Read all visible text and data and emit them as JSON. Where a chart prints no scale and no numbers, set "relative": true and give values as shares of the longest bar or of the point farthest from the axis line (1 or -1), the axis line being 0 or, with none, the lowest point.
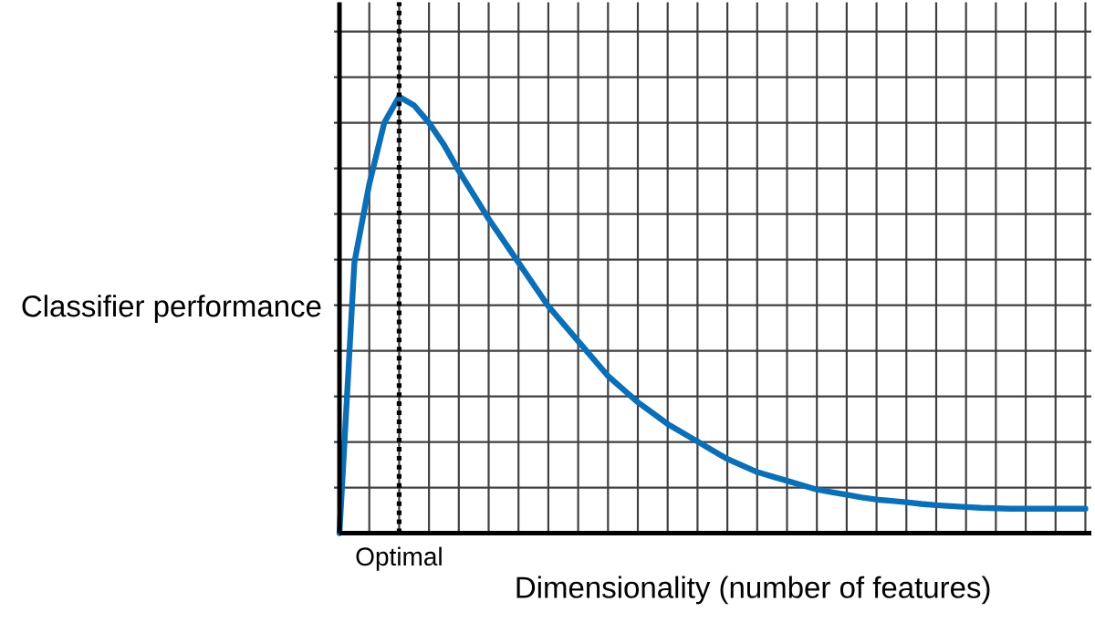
{
  "chart_data": {
    "type": "line",
    "relative": true,
    "xlabel": "Dimensionality (number of features)",
    "ylabel": "Classifier performance",
    "categories": [
      null,
      null,
      null,
      null,
      null,
      null,
      null,
      null,
      null,
      null,
      null,
      null,
      null,
      null,
      null,
      null,
      null,
      null,
      null,
      null,
      null,
      null,
      null,
      null,
      null,
      null,
      null,
      null,
      null,
      null,
      null,
      null,
      null,
      null,
      null,
      null,
      null,
      null,
      null,
      null,
      null,
      null,
      null,
      null,
      null,
      null,
      null,
      null,
      null,
      null,
      null
    ],
    "series": [
      {
        "color": "#0b6fb8",
        "values": [
          0,
          0.62,
          0.8,
          0.94,
          1.0,
          0.98,
          0.94,
          0.89,
          0.83,
          0.775,
          0.72,
          0.67,
          0.62,
          0.57,
          0.52,
          0.48,
          0.44,
          0.4,
          0.36,
          0.33,
          0.3,
          0.275,
          0.25,
          0.23,
          0.21,
          0.19,
          0.17,
          0.155,
          0.14,
          0.13,
          0.12,
          0.11,
          0.1,
          0.094,
          0.088,
          0.082,
          0.077,
          0.074,
          0.071,
          0.067,
          0.064,
          0.062,
          0.06,
          0.058,
          0.057,
          0.056,
          0.056,
          0.056,
          0.056,
          0.056,
          0.056
        ]
      }
    ],
    "annotations": [
      "Optimal"
    ],
    "grid": true,
    "marker": "none",
    "line_style": "solid"
  }
}
